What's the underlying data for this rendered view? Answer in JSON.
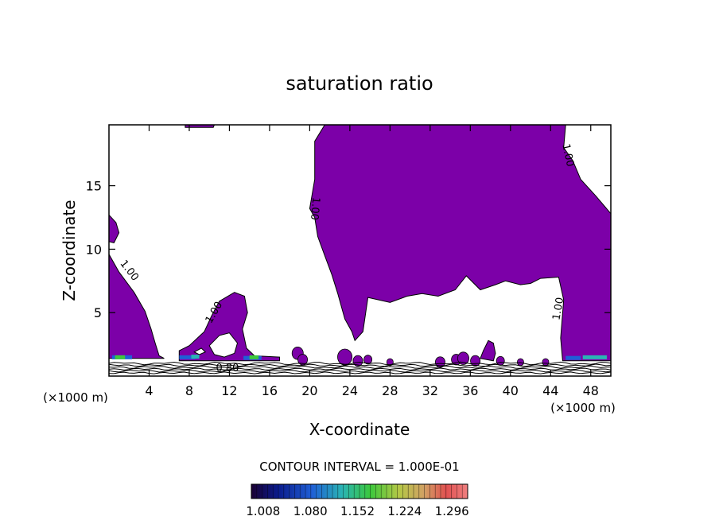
{
  "chart_data": {
    "type": "contour",
    "title": "saturation ratio",
    "xlabel": "X-coordinate",
    "ylabel": "Z-coordinate",
    "x_unit": "(×1000 m)",
    "x_ticks": [
      4,
      8,
      12,
      16,
      20,
      24,
      28,
      32,
      36,
      40,
      44,
      48
    ],
    "y_ticks": [
      5,
      10,
      15
    ],
    "xlim": [
      0,
      50
    ],
    "ylim": [
      0,
      19.8
    ],
    "fill_color": "#7c00a8",
    "contour_labels": [
      {
        "text": "1.00",
        "x": 2.0,
        "y": 8.3,
        "angle": 52
      },
      {
        "text": "1.00",
        "x": 10.5,
        "y": 5.0,
        "angle": -60
      },
      {
        "text": "0.80",
        "x": 11.8,
        "y": 0.6,
        "angle": 0
      },
      {
        "text": "1.00",
        "x": 20.5,
        "y": 13.2,
        "angle": 95
      },
      {
        "text": "1.00",
        "x": 44.8,
        "y": 5.3,
        "angle": -80
      },
      {
        "text": "1.00",
        "x": 45.7,
        "y": 17.4,
        "angle": 78
      }
    ],
    "contour_interval_label": "CONTOUR INTERVAL = 1.000E-01",
    "colorbar": {
      "tick_labels": [
        "1.008",
        "1.080",
        "1.152",
        "1.224",
        "1.296"
      ],
      "range": [
        0.99,
        1.32
      ]
    }
  }
}
